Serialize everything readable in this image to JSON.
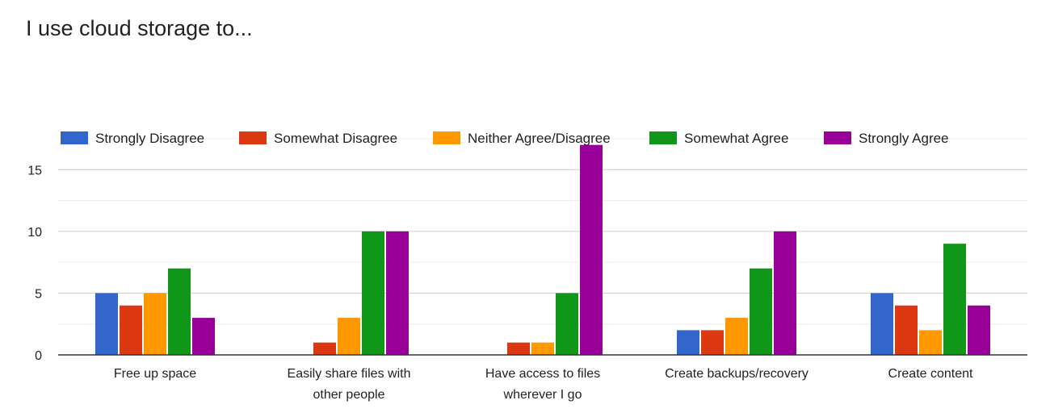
{
  "chart_data": {
    "type": "bar",
    "title": "I use cloud storage to...",
    "xlabel": "",
    "ylabel": "",
    "ylim": [
      0,
      17.5
    ],
    "yticks": [
      0,
      5,
      10,
      15
    ],
    "grid": true,
    "legend_position": "top",
    "categories": [
      [
        "Free up space"
      ],
      [
        "Easily share files with",
        "other people"
      ],
      [
        "Have access to files",
        "wherever I go"
      ],
      [
        "Create backups/recovery"
      ],
      [
        "Create content"
      ]
    ],
    "series": [
      {
        "name": "Strongly Disagree",
        "color": "#3366cc",
        "values": [
          5,
          0,
          0,
          2,
          5
        ]
      },
      {
        "name": "Somewhat Disagree",
        "color": "#dc3912",
        "values": [
          4,
          1,
          1,
          2,
          4
        ]
      },
      {
        "name": "Neither Agree/Disagree",
        "color": "#ff9900",
        "values": [
          5,
          3,
          1,
          3,
          2
        ]
      },
      {
        "name": "Somewhat Agree",
        "color": "#109618",
        "values": [
          7,
          10,
          5,
          7,
          9
        ]
      },
      {
        "name": "Strongly Agree",
        "color": "#990099",
        "values": [
          3,
          10,
          17,
          10,
          4
        ]
      }
    ]
  }
}
